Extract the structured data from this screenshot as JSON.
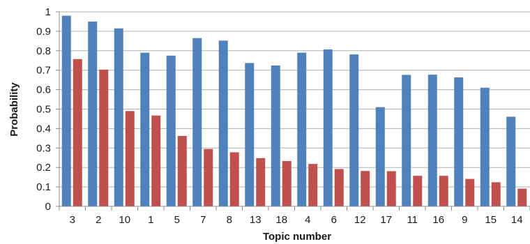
{
  "chart_data": {
    "type": "bar",
    "xlabel": "Topic number",
    "ylabel": "Probability",
    "ylim": [
      0,
      1
    ],
    "yticks": [
      "0",
      "0.1",
      "0.2",
      "0.3",
      "0.4",
      "0.5",
      "0.6",
      "0.7",
      "0.8",
      "0.9",
      "1"
    ],
    "grid": true,
    "legend": "none",
    "categories": [
      "3",
      "2",
      "10",
      "1",
      "5",
      "7",
      "8",
      "13",
      "18",
      "4",
      "6",
      "12",
      "17",
      "11",
      "16",
      "9",
      "15",
      "14"
    ],
    "series": [
      {
        "color": "#4f81bd",
        "values": [
          0.98,
          0.95,
          0.915,
          0.79,
          0.775,
          0.865,
          0.852,
          0.737,
          0.724,
          0.79,
          0.807,
          0.781,
          0.51,
          0.676,
          0.677,
          0.663,
          0.61,
          0.461
        ]
      },
      {
        "color": "#c0504d",
        "values": [
          0.757,
          0.703,
          0.49,
          0.467,
          0.362,
          0.295,
          0.278,
          0.248,
          0.233,
          0.218,
          0.192,
          0.182,
          0.181,
          0.157,
          0.157,
          0.141,
          0.124,
          0.091
        ]
      }
    ]
  }
}
